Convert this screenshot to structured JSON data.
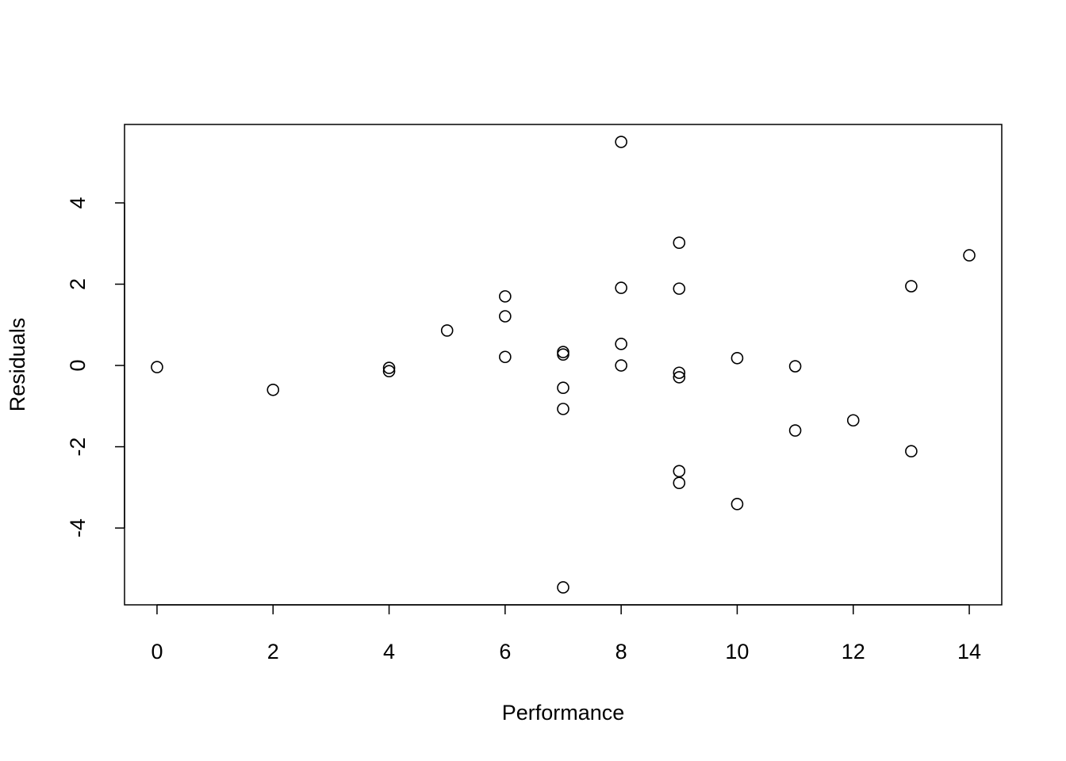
{
  "chart_data": {
    "type": "scatter",
    "x_label": "Performance",
    "y_label": "Residuals",
    "x": [
      0,
      2,
      4,
      4,
      5,
      6,
      6,
      6,
      7,
      7,
      7,
      7,
      7,
      8,
      8,
      8,
      8,
      9,
      9,
      9,
      9,
      9,
      9,
      10,
      10,
      11,
      11,
      12,
      13,
      13,
      14
    ],
    "values": [
      -0.04,
      -0.6,
      -0.06,
      -0.14,
      0.86,
      1.7,
      1.21,
      0.21,
      0.33,
      0.27,
      -0.55,
      -1.07,
      -5.46,
      5.5,
      1.91,
      0.53,
      0.0,
      3.02,
      1.89,
      -0.18,
      -0.29,
      -2.6,
      -2.89,
      0.18,
      -3.41,
      -0.02,
      -1.6,
      -1.35,
      1.95,
      -2.11,
      2.71
    ],
    "color": "#000000",
    "xlim": [
      -0.56,
      14.56
    ],
    "xticks": [
      0,
      2,
      4,
      6,
      8,
      10,
      12,
      14
    ],
    "ylim": [
      -5.89,
      5.93
    ],
    "yticks": [
      -4,
      -2,
      0,
      2,
      4
    ],
    "grid": false
  }
}
